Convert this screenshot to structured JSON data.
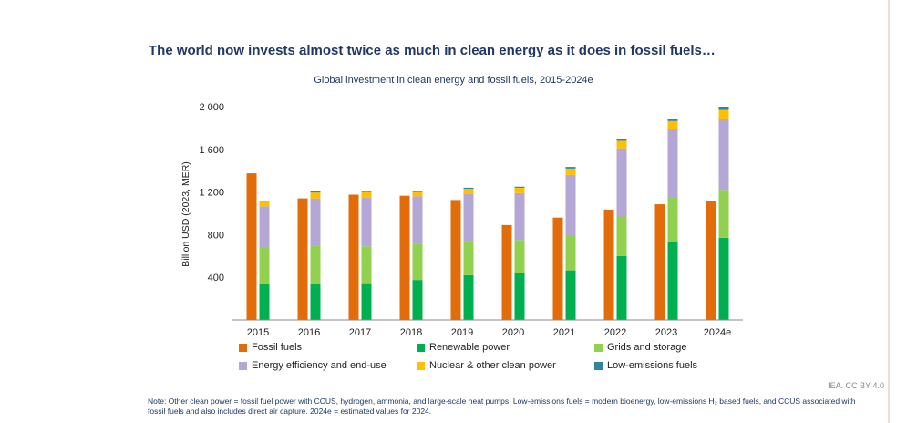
{
  "headline": "The world now invests almost twice as much in clean energy as it does in fossil fuels…",
  "chart_data": {
    "type": "bar",
    "title": "Global investment in clean energy and fossil fuels, 2015-2024e",
    "ylabel": "Billion USD (2023, MER)",
    "xlabel": "",
    "ylim": [
      0,
      2000
    ],
    "yticks": [
      400,
      800,
      1200,
      1600,
      2000
    ],
    "ytick_labels": [
      "400",
      "800",
      "1 200",
      "1 600",
      "2 000"
    ],
    "categories": [
      "2015",
      "2016",
      "2017",
      "2018",
      "2019",
      "2020",
      "2021",
      "2022",
      "2023",
      "2024e"
    ],
    "grid": false,
    "legend_position": "bottom",
    "fossil": {
      "name": "Fossil fuels",
      "color": "#e36c0a",
      "values": [
        1375,
        1140,
        1175,
        1165,
        1125,
        890,
        960,
        1035,
        1085,
        1115
      ]
    },
    "clean_stack": [
      {
        "name": "Renewable power",
        "color": "#00b050",
        "values": [
          335,
          340,
          345,
          375,
          420,
          440,
          465,
          600,
          730,
          770
        ]
      },
      {
        "name": "Grids and storage",
        "color": "#92d050",
        "values": [
          345,
          360,
          345,
          340,
          320,
          310,
          330,
          370,
          420,
          450
        ]
      },
      {
        "name": "Energy efficiency and end-use",
        "color": "#b4a7d6",
        "values": [
          385,
          440,
          455,
          445,
          445,
          440,
          565,
          640,
          640,
          665
        ]
      },
      {
        "name": "Nuclear & other clean power",
        "color": "#ffc000",
        "values": [
          45,
          55,
          55,
          40,
          45,
          50,
          60,
          70,
          75,
          85
        ]
      },
      {
        "name": "Low-emissions fuels",
        "color": "#31859c",
        "values": [
          10,
          10,
          10,
          10,
          10,
          10,
          15,
          20,
          20,
          30
        ]
      }
    ]
  },
  "legend_items": [
    {
      "label": "Fossil fuels",
      "color": "#e36c0a"
    },
    {
      "label": "Renewable power",
      "color": "#00b050"
    },
    {
      "label": "Grids and storage",
      "color": "#92d050"
    },
    {
      "label": "Energy efficiency and end-use",
      "color": "#b4a7d6"
    },
    {
      "label": "Nuclear & other clean power",
      "color": "#ffc000"
    },
    {
      "label": "Low-emissions fuels",
      "color": "#31859c"
    }
  ],
  "credit": "IEA. CC BY 4.0",
  "note": "Note: Other clean power = fossil fuel power with CCUS, hydrogen, ammonia, and large-scale heat pumps. Low-emissions fuels = modern bioenergy, low-emissions H₂ based fuels, and CCUS associated with fossil fuels and also includes direct air capture. 2024e = estimated values for 2024."
}
